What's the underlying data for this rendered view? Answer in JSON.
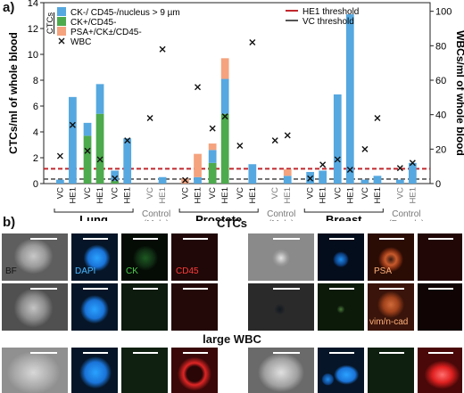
{
  "panel_a": {
    "label": "a)"
  },
  "panel_b": {
    "label": "b)",
    "ctc_title": "CTCs",
    "wbc_title": "large WBC",
    "tile_labels": [
      "BF",
      "DAPI",
      "CK",
      "CD45",
      "PSA",
      "vim/n-cad"
    ]
  },
  "colors": {
    "ck_neg": "#56a8e0",
    "ck_pos": "#4daa4d",
    "psa": "#f4a37e",
    "he1_threshold": "#c0272d",
    "vc_threshold": "#555555",
    "wbc_marker": "#111111"
  },
  "chart_data": {
    "type": "bar",
    "ylabel": "CTCs/ml of whole blood",
    "y2label": "WBCs/ml of whole blood",
    "ylim": [
      0,
      14
    ],
    "yticks": [
      0,
      2,
      4,
      6,
      8,
      10,
      12,
      14
    ],
    "y2lim": [
      0,
      105
    ],
    "y2ticks": [
      0,
      20,
      40,
      60,
      80,
      100
    ],
    "legend_title": "CTCs",
    "legend": [
      {
        "key": "ck_neg",
        "label": "CK-/ CD45-/nucleus > 9 µm"
      },
      {
        "key": "ck_pos",
        "label": "CK+/CD45-"
      },
      {
        "key": "psa",
        "label": "PSA+/CK±/CD45-"
      },
      {
        "key": "wbc",
        "label": "WBC"
      }
    ],
    "threshold_legend": [
      {
        "key": "he1",
        "label": "HE1 threshold"
      },
      {
        "key": "vc",
        "label": "VC threshold"
      }
    ],
    "thresholds": {
      "he1": 1.15,
      "vc": 0.35
    },
    "groups": [
      {
        "name": "Lung",
        "sub": ""
      },
      {
        "name": "Control",
        "sub": "(Male)"
      },
      {
        "name": "Prostate",
        "sub": ""
      },
      {
        "name": "Control",
        "sub": "(Male)"
      },
      {
        "name": "Breast",
        "sub": ""
      },
      {
        "name": "Control",
        "sub": "(Female)"
      }
    ],
    "bars": [
      {
        "g": 0,
        "label": "VC",
        "ck_pos": 0,
        "ck_neg": 0.3,
        "psa": 0,
        "wbc": 16
      },
      {
        "g": 0,
        "label": "HE1",
        "ck_pos": 0,
        "ck_neg": 6.7,
        "psa": 0,
        "wbc": 34
      },
      {
        "g": 0,
        "label": "VC",
        "ck_pos": 3.7,
        "ck_neg": 1.0,
        "psa": 0,
        "wbc": 19
      },
      {
        "g": 0,
        "label": "HE1",
        "ck_pos": 5.4,
        "ck_neg": 2.3,
        "psa": 0,
        "wbc": 14
      },
      {
        "g": 0,
        "label": "VC",
        "ck_pos": 0.2,
        "ck_neg": 0.8,
        "psa": 0,
        "wbc": 3
      },
      {
        "g": 0,
        "label": "HE1",
        "ck_pos": 0,
        "ck_neg": 3.5,
        "psa": 0,
        "wbc": 25
      },
      {
        "g": 1,
        "label": "VC",
        "ck_pos": 0,
        "ck_neg": 0,
        "psa": 0,
        "wbc": 38
      },
      {
        "g": 1,
        "label": "HE1",
        "ck_pos": 0,
        "ck_neg": 0.5,
        "psa": 0,
        "wbc": 78
      },
      {
        "g": 2,
        "label": "VC",
        "ck_pos": 0,
        "ck_neg": 0,
        "psa": 0.4,
        "wbc": 2
      },
      {
        "g": 2,
        "label": "HE1",
        "ck_pos": 0,
        "ck_neg": 0.5,
        "psa": 1.8,
        "wbc": 56
      },
      {
        "g": 2,
        "label": "VC",
        "ck_pos": 1.6,
        "ck_neg": 1.0,
        "psa": 0.5,
        "wbc": 32
      },
      {
        "g": 2,
        "label": "HE1",
        "ck_pos": 5.4,
        "ck_neg": 2.7,
        "psa": 1.6,
        "wbc": 39
      },
      {
        "g": 2,
        "label": "VC",
        "ck_pos": 0,
        "ck_neg": 0,
        "psa": 0,
        "wbc": 22
      },
      {
        "g": 2,
        "label": "HE1",
        "ck_pos": 0,
        "ck_neg": 1.5,
        "psa": 0,
        "wbc": 82
      },
      {
        "g": 3,
        "label": "VC",
        "ck_pos": 0,
        "ck_neg": 0,
        "psa": 0,
        "wbc": 25
      },
      {
        "g": 3,
        "label": "HE1",
        "ck_pos": 0,
        "ck_neg": 0.6,
        "psa": 0.5,
        "wbc": 28
      },
      {
        "g": 4,
        "label": "VC",
        "ck_pos": 0,
        "ck_neg": 0.9,
        "psa": 0,
        "wbc": 3
      },
      {
        "g": 4,
        "label": "HE1",
        "ck_pos": 0,
        "ck_neg": 1.0,
        "psa": 0,
        "wbc": 11
      },
      {
        "g": 4,
        "label": "VC",
        "ck_pos": 0,
        "ck_neg": 6.9,
        "psa": 0,
        "wbc": 14
      },
      {
        "g": 4,
        "label": "HE1",
        "ck_pos": 0,
        "ck_neg": 13.1,
        "psa": 0,
        "wbc": 8
      },
      {
        "g": 4,
        "label": "VC",
        "ck_pos": 0,
        "ck_neg": 0.3,
        "psa": 0,
        "wbc": 20
      },
      {
        "g": 4,
        "label": "HE1",
        "ck_pos": 0,
        "ck_neg": 0.6,
        "psa": 0,
        "wbc": 38
      },
      {
        "g": 5,
        "label": "VC",
        "ck_pos": 0,
        "ck_neg": 0.3,
        "psa": 0,
        "wbc": 9
      },
      {
        "g": 5,
        "label": "HE1",
        "ck_pos": 0,
        "ck_neg": 1.6,
        "psa": 0,
        "wbc": 12
      }
    ]
  }
}
